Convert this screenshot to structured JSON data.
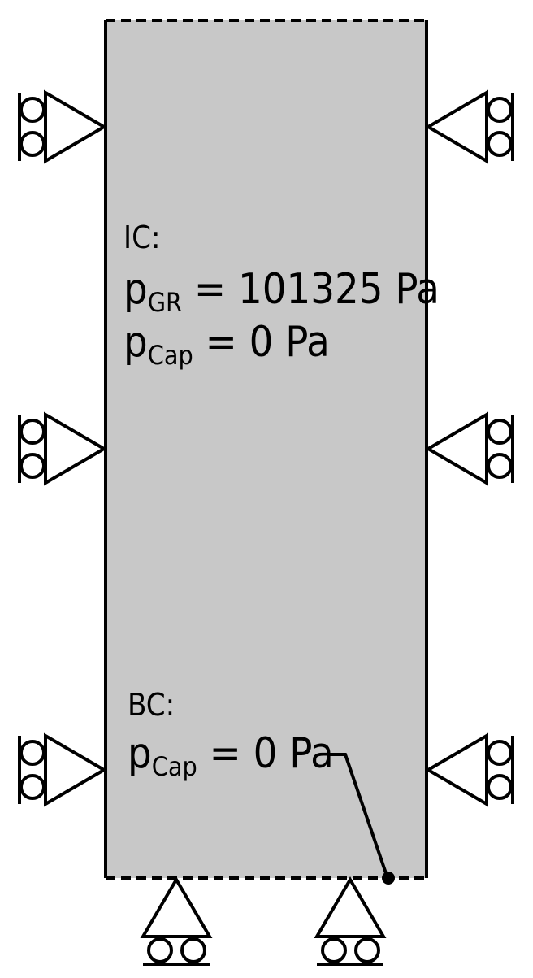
{
  "initial_conditions": {
    "heading": "IC:",
    "line1": {
      "symbol": "p",
      "subscript": "GR",
      "rest": " = 101325 Pa"
    },
    "line2": {
      "symbol": "p",
      "subscript": "Cap",
      "rest": " = 0 Pa"
    }
  },
  "boundary_conditions": {
    "heading": "BC:",
    "line1": {
      "symbol": "p",
      "subscript": "Cap",
      "rest": " = 0 Pa"
    }
  },
  "colors": {
    "domain_fill": "#c8c8c8",
    "stroke": "#000000"
  }
}
